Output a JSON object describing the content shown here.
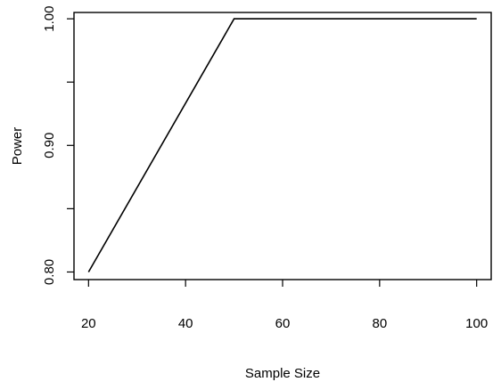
{
  "chart_data": {
    "type": "line",
    "title": "",
    "xlabel": "Sample Size",
    "ylabel": "Power",
    "x": [
      20,
      50,
      100
    ],
    "series": [
      {
        "values": [
          0.8,
          1.0,
          1.0
        ],
        "color": "#000000"
      }
    ],
    "xlim": [
      17,
      103
    ],
    "ylim": [
      0.794,
      1.005
    ],
    "xticks": [
      20,
      40,
      60,
      80,
      100
    ],
    "xtick_labels": [
      "20",
      "40",
      "60",
      "80",
      "100"
    ],
    "yticks": [
      0.8,
      0.85,
      0.9,
      0.95,
      1.0
    ],
    "ytick_labels": [
      "0.80",
      "",
      "0.90",
      "",
      "1.00"
    ],
    "grid": false,
    "legend": "none"
  }
}
